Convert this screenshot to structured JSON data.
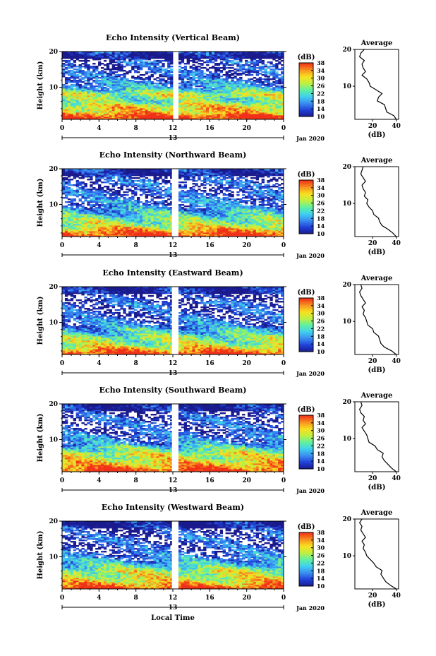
{
  "figure": {
    "xlabel": "Local Time",
    "ylabel": "Height (km)",
    "units": "(dB)",
    "date_label": "Jan 2020",
    "midnight_label": "13",
    "avg_title": "Average",
    "avg_xlabel": "(dB)",
    "colors": {
      "colormap": [
        "#1a1a8c",
        "#2040d8",
        "#3a8cf0",
        "#40d0f0",
        "#60f0a0",
        "#c0f040",
        "#f8e020",
        "#f89020",
        "#f03018"
      ],
      "gap": "#ffffff"
    }
  },
  "chart_data": [
    {
      "type": "heatmap",
      "title": "Echo Intensity (Vertical Beam)",
      "xlabel": "Local Time",
      "ylabel": "Height (km)",
      "x_ticks": [
        "0",
        "4",
        "8",
        "12",
        "16",
        "20",
        "0"
      ],
      "xlim": [
        0,
        24
      ],
      "y_ticks": [
        "10",
        "20"
      ],
      "ylim": [
        1,
        20
      ],
      "colorbar": {
        "label": "(dB)",
        "ticks": [
          "10",
          "14",
          "18",
          "22",
          "26",
          "30",
          "34",
          "38"
        ],
        "range": [
          10,
          38
        ]
      },
      "data_gap_hours": [
        12.1,
        12.6
      ],
      "profile": {
        "title": "Average",
        "xlabel": "(dB)",
        "x_ticks": [
          "20",
          "40"
        ],
        "xlim": [
          5,
          42
        ],
        "y_ticks": [
          "10",
          "20"
        ],
        "heights": [
          1,
          2,
          3,
          4,
          5,
          6,
          7,
          8,
          9,
          10,
          11,
          12,
          13,
          14,
          15,
          16,
          17,
          18,
          19,
          20
        ],
        "values": [
          40,
          38,
          32,
          31,
          30,
          24,
          25,
          28,
          23,
          18,
          17,
          15,
          11,
          14,
          12,
          11,
          13,
          9,
          10,
          13
        ]
      }
    },
    {
      "type": "heatmap",
      "title": "Echo Intensity (Northward Beam)",
      "xlabel": "Local Time",
      "ylabel": "Height (km)",
      "x_ticks": [
        "0",
        "4",
        "8",
        "12",
        "16",
        "20",
        "0"
      ],
      "xlim": [
        0,
        24
      ],
      "y_ticks": [
        "10",
        "20"
      ],
      "ylim": [
        1,
        20
      ],
      "colorbar": {
        "label": "(dB)",
        "ticks": [
          "10",
          "14",
          "18",
          "22",
          "26",
          "30",
          "34",
          "38"
        ],
        "range": [
          10,
          38
        ]
      },
      "data_gap_hours": [
        11.9,
        12.6
      ],
      "profile": {
        "title": "Average",
        "xlabel": "(dB)",
        "x_ticks": [
          "20",
          "40"
        ],
        "xlim": [
          5,
          42
        ],
        "y_ticks": [
          "10",
          "20"
        ],
        "heights": [
          1,
          2,
          3,
          4,
          5,
          6,
          7,
          8,
          9,
          10,
          11,
          12,
          13,
          14,
          15,
          16,
          17,
          18,
          19,
          20
        ],
        "values": [
          40,
          37,
          33,
          28,
          26,
          25,
          21,
          20,
          17,
          15,
          16,
          13,
          14,
          12,
          11,
          14,
          12,
          10,
          11,
          12
        ]
      }
    },
    {
      "type": "heatmap",
      "title": "Echo Intensity (Eastward Beam)",
      "xlabel": "Local Time",
      "ylabel": "Height (km)",
      "x_ticks": [
        "0",
        "4",
        "8",
        "12",
        "16",
        "20",
        "0"
      ],
      "xlim": [
        0,
        24
      ],
      "y_ticks": [
        "10",
        "20"
      ],
      "ylim": [
        1,
        20
      ],
      "colorbar": {
        "label": "(dB)",
        "ticks": [
          "10",
          "14",
          "18",
          "22",
          "26",
          "30",
          "34",
          "38"
        ],
        "range": [
          10,
          38
        ]
      },
      "data_gap_hours": [
        11.9,
        12.6
      ],
      "profile": {
        "title": "Average",
        "xlabel": "(dB)",
        "x_ticks": [
          "20",
          "40"
        ],
        "xlim": [
          5,
          42
        ],
        "y_ticks": [
          "10",
          "20"
        ],
        "heights": [
          1,
          2,
          3,
          4,
          5,
          6,
          7,
          8,
          9,
          10,
          11,
          12,
          13,
          14,
          15,
          16,
          17,
          18,
          19,
          20
        ],
        "values": [
          40,
          36,
          30,
          27,
          26,
          25,
          21,
          20,
          16,
          15,
          14,
          12,
          13,
          11,
          14,
          12,
          10,
          9,
          11,
          10
        ]
      }
    },
    {
      "type": "heatmap",
      "title": "Echo Intensity (Southward Beam)",
      "xlabel": "Local Time",
      "ylabel": "Height (km)",
      "x_ticks": [
        "0",
        "4",
        "8",
        "12",
        "16",
        "20",
        "0"
      ],
      "xlim": [
        0,
        24
      ],
      "y_ticks": [
        "10",
        "20"
      ],
      "ylim": [
        1,
        20
      ],
      "colorbar": {
        "label": "(dB)",
        "ticks": [
          "10",
          "14",
          "18",
          "22",
          "26",
          "30",
          "34",
          "38"
        ],
        "range": [
          10,
          38
        ]
      },
      "data_gap_hours": [
        11.9,
        12.6
      ],
      "profile": {
        "title": "Average",
        "xlabel": "(dB)",
        "x_ticks": [
          "20",
          "40"
        ],
        "xlim": [
          5,
          42
        ],
        "y_ticks": [
          "10",
          "20"
        ],
        "heights": [
          1,
          2,
          3,
          4,
          5,
          6,
          7,
          8,
          9,
          10,
          11,
          12,
          13,
          14,
          15,
          16,
          17,
          18,
          19,
          20
        ],
        "values": [
          40,
          36,
          33,
          30,
          28,
          29,
          24,
          22,
          17,
          16,
          15,
          13,
          11,
          14,
          12,
          13,
          10,
          9,
          11,
          10
        ]
      }
    },
    {
      "type": "heatmap",
      "title": "Echo Intensity (Westward Beam)",
      "xlabel": "Local Time",
      "ylabel": "Height (km)",
      "x_ticks": [
        "0",
        "4",
        "8",
        "12",
        "16",
        "20",
        "0"
      ],
      "xlim": [
        0,
        24
      ],
      "y_ticks": [
        "10",
        "20"
      ],
      "ylim": [
        1,
        20
      ],
      "colorbar": {
        "label": "(dB)",
        "ticks": [
          "10",
          "14",
          "18",
          "22",
          "26",
          "30",
          "34",
          "38"
        ],
        "range": [
          10,
          38
        ]
      },
      "data_gap_hours": [
        11.9,
        12.6
      ],
      "profile": {
        "title": "Average",
        "xlabel": "(dB)",
        "x_ticks": [
          "20",
          "40"
        ],
        "xlim": [
          5,
          42
        ],
        "y_ticks": [
          "10",
          "20"
        ],
        "heights": [
          1,
          2,
          3,
          4,
          5,
          6,
          7,
          8,
          9,
          10,
          11,
          12,
          13,
          14,
          15,
          16,
          17,
          18,
          19,
          20
        ],
        "values": [
          40,
          35,
          31,
          29,
          27,
          28,
          23,
          21,
          18,
          15,
          14,
          12,
          13,
          11,
          14,
          12,
          10,
          11,
          9,
          11
        ]
      }
    }
  ]
}
